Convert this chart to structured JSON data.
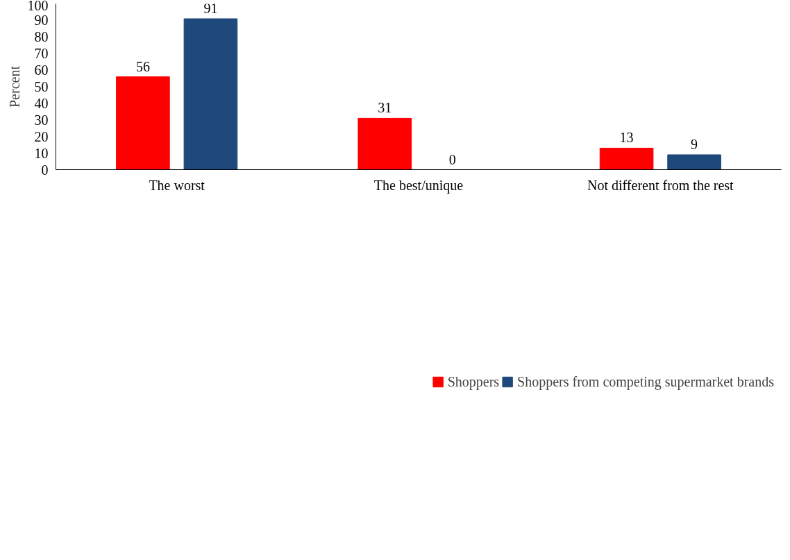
{
  "chart_data": {
    "type": "bar",
    "ylabel": "Percent",
    "categories": [
      "The worst",
      "The best/unique",
      "Not different from the rest"
    ],
    "series": [
      {
        "name": "Shoppers",
        "color": "#ff0000",
        "values": [
          56,
          31,
          13
        ]
      },
      {
        "name": "Shoppers from competing supermarket brands",
        "color": "#1f497d",
        "values": [
          91,
          0,
          9
        ]
      }
    ],
    "ylim": [
      0,
      100
    ],
    "yticks": [
      0,
      10,
      20,
      30,
      40,
      50,
      60,
      70,
      80,
      90,
      100
    ],
    "grid": false,
    "legend": "bottom",
    "data_labels": true
  }
}
